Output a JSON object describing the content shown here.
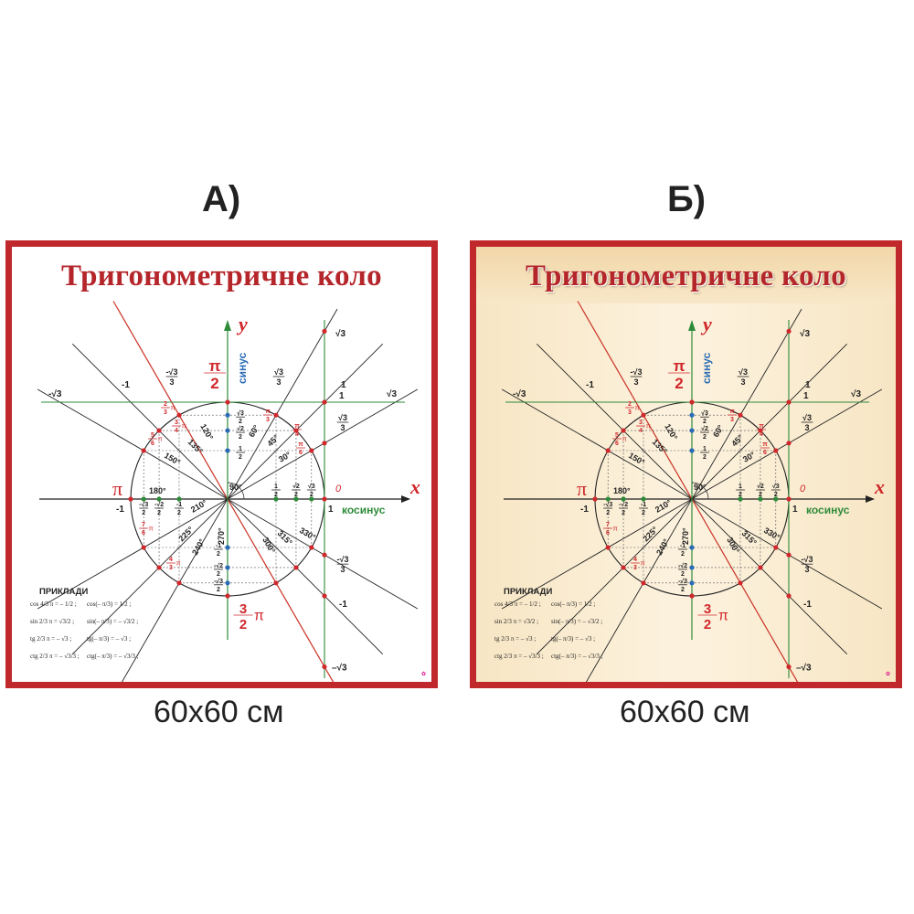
{
  "variants": [
    {
      "label": "А)",
      "size": "60x60 см",
      "title": "Тригонометричне коло",
      "background": "#ffffff",
      "frame_color": "#c0282c"
    },
    {
      "label": "Б)",
      "size": "60x60 см",
      "title": "Тригонометричне коло",
      "background": "#fcf1dc",
      "frame_color": "#c0282c"
    }
  ],
  "diagram": {
    "axis_x": "x",
    "axis_y": "y",
    "sine_label": "синус",
    "cosine_label": "косинус",
    "origin_label": "0",
    "pi_label": "π",
    "half_pi": {
      "num": "π",
      "den": "2"
    },
    "three_half_pi": {
      "num": "3",
      "den": "2",
      "sym": "π"
    },
    "x_one": "1",
    "x_minus_one": "-1",
    "tan_labels": {
      "sqrt3": "√3",
      "minus_sqrt3": "–√3",
      "one": "1",
      "minus_one": "-1",
      "sqrt3_over_3": {
        "num": "√3",
        "den": "3"
      },
      "minus_sqrt3_over_3": {
        "num": "-√3",
        "den": "3"
      }
    },
    "cot_labels": {
      "minus_sqrt3": "-√3",
      "minus_one": "-1",
      "minus_sqrt3_over_3": {
        "num": "-√3",
        "den": "3"
      },
      "sqrt3_over_3": {
        "num": "√3",
        "den": "3"
      },
      "one": "1",
      "sqrt3": "√3"
    },
    "degrees": [
      {
        "deg": "30°",
        "angle": 30
      },
      {
        "deg": "45°",
        "angle": 45
      },
      {
        "deg": "60°",
        "angle": 60
      },
      {
        "deg": "90°",
        "angle": 90
      },
      {
        "deg": "120°",
        "angle": 120
      },
      {
        "deg": "135°",
        "angle": 135
      },
      {
        "deg": "150°",
        "angle": 150
      },
      {
        "deg": "180°",
        "angle": 180
      },
      {
        "deg": "210°",
        "angle": 210
      },
      {
        "deg": "225°",
        "angle": 225
      },
      {
        "deg": "240°",
        "angle": 240
      },
      {
        "deg": "270°",
        "angle": 270
      },
      {
        "deg": "300°",
        "angle": 300
      },
      {
        "deg": "315°",
        "angle": 315
      },
      {
        "deg": "330°",
        "angle": 330
      }
    ],
    "radian_labels": [
      {
        "num": "π",
        "den": "6",
        "angle": 30
      },
      {
        "num": "π",
        "den": "4",
        "angle": 45
      },
      {
        "num": "π",
        "den": "3",
        "angle": 60
      },
      {
        "num": "2",
        "den": "3",
        "sym": "π",
        "angle": 120
      },
      {
        "num": "3",
        "den": "4",
        "sym": "π",
        "angle": 135
      },
      {
        "num": "5",
        "den": "6",
        "sym": "π",
        "angle": 150
      },
      {
        "num": "7",
        "den": "6",
        "sym": "π",
        "angle": 210
      },
      {
        "num": "4",
        "den": "3",
        "sym": "π",
        "angle": 240
      }
    ],
    "sin_values": [
      {
        "num": "√3",
        "den": "2",
        "value": 0.866
      },
      {
        "num": "√2",
        "den": "2",
        "value": 0.707
      },
      {
        "num": "1",
        "den": "2",
        "value": 0.5
      },
      {
        "num": "-1",
        "den": "2",
        "value": -0.5
      },
      {
        "num": "-√2",
        "den": "2",
        "value": -0.707
      },
      {
        "num": "-√3",
        "den": "2",
        "value": -0.866
      }
    ],
    "cos_values": [
      {
        "num": "1",
        "den": "2",
        "value": 0.5
      },
      {
        "num": "√2",
        "den": "2",
        "value": 0.707
      },
      {
        "num": "√3",
        "den": "2",
        "value": 0.866
      },
      {
        "num": "-√3",
        "den": "2",
        "value": -0.866
      },
      {
        "num": "-√2",
        "den": "2",
        "value": -0.707
      },
      {
        "num": "-1",
        "den": "2",
        "value": -0.5
      }
    ]
  },
  "examples": {
    "heading": "ПРИКЛАДИ",
    "rows": [
      [
        "cos 4/3 π = – 1/2 ;",
        "cos(– π/3) = 1/2 ;"
      ],
      [
        "sin 2/3 π = √3/2 ;",
        "sin(– π/3) = – √3/2 ;"
      ],
      [
        "tg 2/3 π = – √3 ;",
        "tg(– π/3) = – √3 ;"
      ],
      [
        "ctg 2/3 π = – √3/3 ;",
        "ctg(– π/3) = – √3/3 ;"
      ]
    ]
  },
  "colors": {
    "frame": "#c0282c",
    "title": "#b5262b",
    "red_line": "#d33a2c",
    "green_axis": "#2e8b3a",
    "sine_blue": "#2a6bb5",
    "point_red": "#d0282c",
    "point_blue": "#2a6bb5",
    "point_green": "#2e8b3a"
  }
}
